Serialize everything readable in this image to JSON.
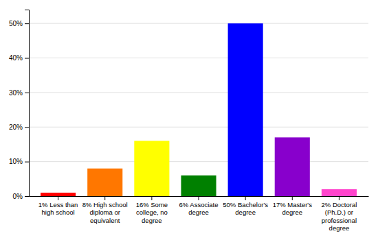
{
  "chart_data": {
    "type": "bar",
    "categories": [
      "1% Less than\nhigh school",
      "8% High school\ndiploma or\nequivalent",
      "16% Some\ncollege, no\ndegree",
      "6% Associate\ndegree",
      "50% Bachelor's\ndegree",
      "17% Master's\ndegree",
      "2% Doctoral\n(Ph.D.) or\nprofessional\ndegree"
    ],
    "values": [
      1,
      8,
      16,
      6,
      50,
      17,
      2
    ],
    "colors": [
      "#ff0000",
      "#ff7700",
      "#ffff00",
      "#008000",
      "#0000ff",
      "#8800cc",
      "#ff44cc"
    ],
    "ylim": [
      0,
      54
    ],
    "yticks": [
      {
        "value": 0,
        "label": "0%"
      },
      {
        "value": 10,
        "label": "10%"
      },
      {
        "value": 20,
        "label": "20%"
      },
      {
        "value": 30,
        "label": "30%"
      },
      {
        "value": 40,
        "label": "40%"
      },
      {
        "value": 50,
        "label": "50%"
      }
    ],
    "grid": true
  }
}
